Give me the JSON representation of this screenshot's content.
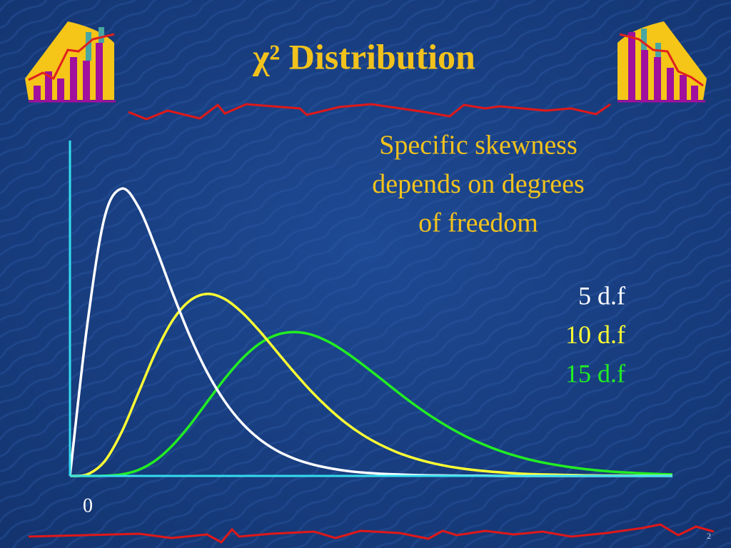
{
  "chart_data": {
    "type": "line",
    "title": "χ² Distribution",
    "annotation": [
      "Specific skewness",
      "depends on degrees",
      "of freedom"
    ],
    "x": [
      0,
      1,
      2,
      3,
      4,
      5,
      6,
      7,
      8,
      9,
      10,
      11,
      12,
      13,
      14,
      15,
      16,
      17,
      18,
      19,
      20,
      21,
      22,
      23,
      24,
      25,
      26,
      27,
      28,
      29,
      30,
      31,
      32,
      33,
      34,
      35
    ],
    "series": [
      {
        "name": "5 d.f",
        "color": "#ffffff",
        "values": [
          0,
          0.0807,
          0.1384,
          0.1542,
          0.144,
          0.122,
          0.0973,
          0.0744,
          0.0551,
          0.0399,
          0.0283,
          0.0198,
          0.0137,
          0.0094,
          0.0064,
          0.0043,
          0.0028,
          0.0018,
          0.0012,
          0.0008,
          0.0005,
          0.0003,
          0.0002,
          0.0001,
          0.0001,
          0,
          0,
          0,
          0,
          0,
          0,
          0,
          0,
          0,
          0,
          0
        ]
      },
      {
        "name": "10 d.f",
        "color": "#ffff33",
        "values": [
          0,
          0.0008,
          0.0077,
          0.0235,
          0.0451,
          0.0668,
          0.084,
          0.0943,
          0.0977,
          0.0949,
          0.0877,
          0.0779,
          0.0669,
          0.0559,
          0.0456,
          0.0365,
          0.0286,
          0.0221,
          0.0169,
          0.0127,
          0.0095,
          0.007,
          0.0051,
          0.0037,
          0.0027,
          0.0019,
          0.0013,
          0.0009,
          0.0007,
          0.0005,
          0.0003,
          0.0002,
          0.0002,
          0.0001,
          0.0001,
          0.0001
        ]
      },
      {
        "name": "15 d.f",
        "color": "#22ee22",
        "values": [
          0,
          0,
          0.0001,
          0.0008,
          0.0033,
          0.0085,
          0.0168,
          0.0277,
          0.0401,
          0.0523,
          0.0629,
          0.0709,
          0.0757,
          0.0772,
          0.0759,
          0.0721,
          0.0665,
          0.0598,
          0.0526,
          0.0453,
          0.0383,
          0.0319,
          0.0262,
          0.0212,
          0.017,
          0.0134,
          0.0105,
          0.0081,
          0.0063,
          0.0048,
          0.0036,
          0.0027,
          0.002,
          0.0015,
          0.0011,
          0.0008
        ]
      }
    ],
    "xlim": [
      0,
      35
    ],
    "ylim": [
      0,
      0.18
    ],
    "xticks": [
      0
    ],
    "axis_color": "#33ddee",
    "text_color": "#f2c21c"
  },
  "slide": {
    "page_number": 2
  }
}
